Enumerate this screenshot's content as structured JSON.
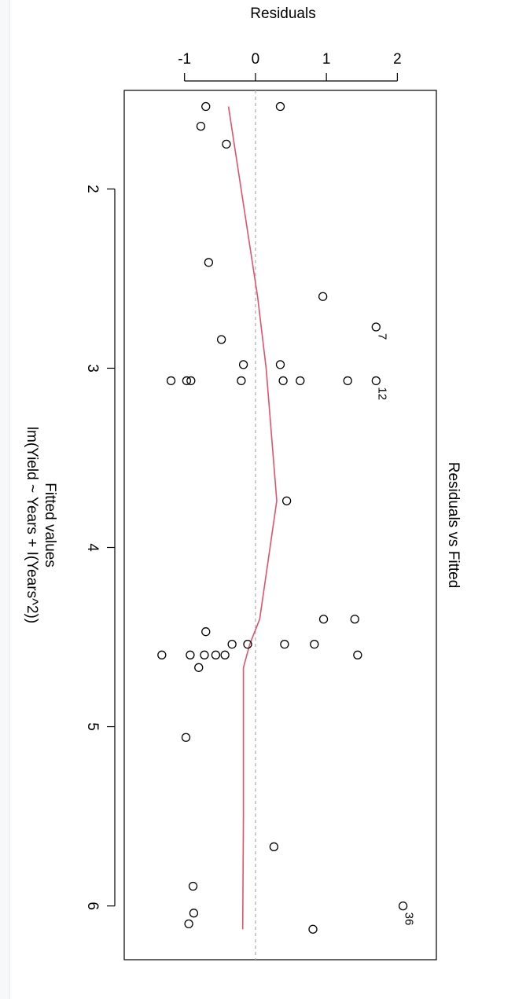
{
  "chart_data": {
    "type": "scatter",
    "orientation": "rotated 90° clockwise",
    "title": "Residuals vs Fitted",
    "xlabel": "Fitted values",
    "xsublabel": "lm(Yield ~ Years + I(Years^2))",
    "ylabel": "Residuals",
    "xlim": [
      1.45,
      6.3
    ],
    "ylim": [
      -1.85,
      2.55
    ],
    "x_ticks": [
      2,
      3,
      4,
      5,
      6
    ],
    "y_ticks": [
      -1,
      0,
      1,
      2
    ],
    "tick_labels_x": [
      "2",
      "3",
      "4",
      "5",
      "6"
    ],
    "tick_labels_y": [
      "-1",
      "0",
      "1",
      "2"
    ],
    "zero_line": true,
    "points": [
      {
        "x": 1.54,
        "y": -0.7
      },
      {
        "x": 1.54,
        "y": 0.35
      },
      {
        "x": 1.65,
        "y": -0.77
      },
      {
        "x": 1.75,
        "y": -0.41
      },
      {
        "x": 2.41,
        "y": -0.66
      },
      {
        "x": 2.6,
        "y": 0.95
      },
      {
        "x": 2.77,
        "y": 1.7,
        "label": "7"
      },
      {
        "x": 2.84,
        "y": -0.48
      },
      {
        "x": 2.98,
        "y": -0.17
      },
      {
        "x": 2.98,
        "y": 0.35
      },
      {
        "x": 3.07,
        "y": -1.19
      },
      {
        "x": 3.07,
        "y": -0.97
      },
      {
        "x": 3.07,
        "y": -0.91
      },
      {
        "x": 3.07,
        "y": -0.2
      },
      {
        "x": 3.07,
        "y": 0.39
      },
      {
        "x": 3.07,
        "y": 0.63
      },
      {
        "x": 3.07,
        "y": 1.3
      },
      {
        "x": 3.07,
        "y": 1.7,
        "label": "12"
      },
      {
        "x": 3.74,
        "y": 0.44
      },
      {
        "x": 4.4,
        "y": 0.96
      },
      {
        "x": 4.4,
        "y": 1.4
      },
      {
        "x": 4.47,
        "y": -0.7
      },
      {
        "x": 4.54,
        "y": -0.33
      },
      {
        "x": 4.54,
        "y": -0.11
      },
      {
        "x": 4.54,
        "y": 0.41
      },
      {
        "x": 4.54,
        "y": 0.83
      },
      {
        "x": 4.6,
        "y": -1.32
      },
      {
        "x": 4.6,
        "y": -0.92
      },
      {
        "x": 4.6,
        "y": -0.72
      },
      {
        "x": 4.6,
        "y": -0.56
      },
      {
        "x": 4.6,
        "y": -0.43
      },
      {
        "x": 4.6,
        "y": 1.44
      },
      {
        "x": 4.67,
        "y": -0.8
      },
      {
        "x": 5.06,
        "y": -0.98
      },
      {
        "x": 5.67,
        "y": 0.26
      },
      {
        "x": 5.89,
        "y": -0.88
      },
      {
        "x": 6.0,
        "y": 2.08,
        "label": "36"
      },
      {
        "x": 6.04,
        "y": -0.87
      },
      {
        "x": 6.1,
        "y": -0.94
      },
      {
        "x": 6.13,
        "y": 0.81
      }
    ],
    "smooth_line": {
      "color": "#df536b",
      "x": [
        1.54,
        1.75,
        2.6,
        3.0,
        3.74,
        4.4,
        4.54,
        4.67,
        5.5,
        6.13
      ],
      "y": [
        -0.38,
        -0.3,
        0.03,
        0.15,
        0.3,
        0.06,
        -0.08,
        -0.17,
        -0.17,
        -0.18
      ]
    },
    "colors": {
      "points": "#000000",
      "smooth": "#df536b",
      "zero_line": "#b3b3b3"
    }
  }
}
